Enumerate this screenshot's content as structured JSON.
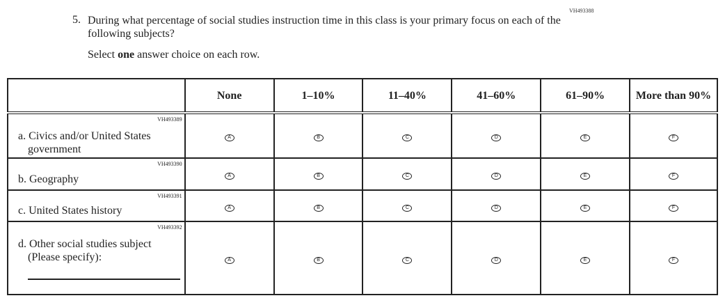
{
  "question": {
    "code": "VH493388",
    "number": "5.",
    "text": "During what percentage of social studies instruction time in this class is your primary focus on each of the following subjects?",
    "instruction_pre": "Select ",
    "instruction_bold": "one",
    "instruction_post": " answer choice on each row."
  },
  "columns": [
    "None",
    "1–10%",
    "11–40%",
    "41–60%",
    "61–90%",
    "More than 90%"
  ],
  "choices": [
    "A",
    "B",
    "C",
    "D",
    "E",
    "F"
  ],
  "rows": [
    {
      "code": "VH493389",
      "label": "a. Civics and/or United States government"
    },
    {
      "code": "VH493390",
      "label": "b. Geography"
    },
    {
      "code": "VH493391",
      "label": "c. United States history"
    },
    {
      "code": "VH493392",
      "label": "d. Other social studies subject (Please specify):"
    }
  ]
}
